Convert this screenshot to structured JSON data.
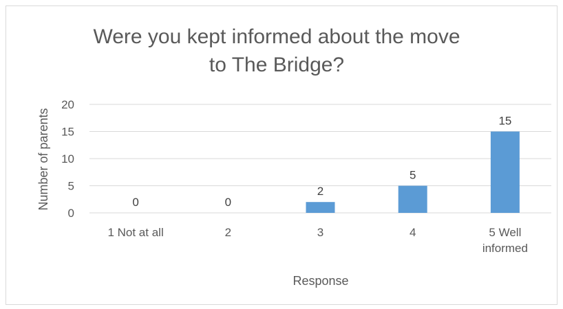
{
  "chart_data": {
    "type": "bar",
    "title_lines": [
      "Were you kept informed about the move",
      "to The Bridge?"
    ],
    "xlabel": "Response",
    "ylabel": "Number of parents",
    "categories": [
      "1 Not at all",
      "2",
      "3",
      "4",
      "5 Well informed"
    ],
    "category_lines": [
      [
        "1 Not at all"
      ],
      [
        "2"
      ],
      [
        "3"
      ],
      [
        "4"
      ],
      [
        "5 Well",
        "informed"
      ]
    ],
    "values": [
      0,
      0,
      2,
      5,
      15
    ],
    "data_labels": [
      "0",
      "0",
      "2",
      "5",
      "15"
    ],
    "yticks": [
      0,
      5,
      10,
      15,
      20
    ],
    "ylim": [
      0,
      20
    ],
    "grid": true,
    "legend": "none",
    "bar_color": "#5B9BD5"
  }
}
